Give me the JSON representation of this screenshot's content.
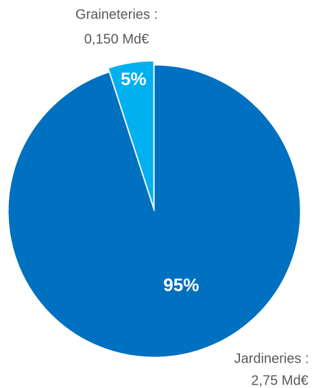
{
  "chart_data": {
    "type": "pie",
    "categories": [
      "Jardineries :",
      "Graineteries :"
    ],
    "values": [
      95,
      5
    ],
    "value_labels": [
      "95%",
      "5%"
    ],
    "amount_labels": [
      "2,75 Md€",
      "0,150 Md€"
    ],
    "colors": [
      "#0070c0",
      "#00b0f0"
    ]
  }
}
